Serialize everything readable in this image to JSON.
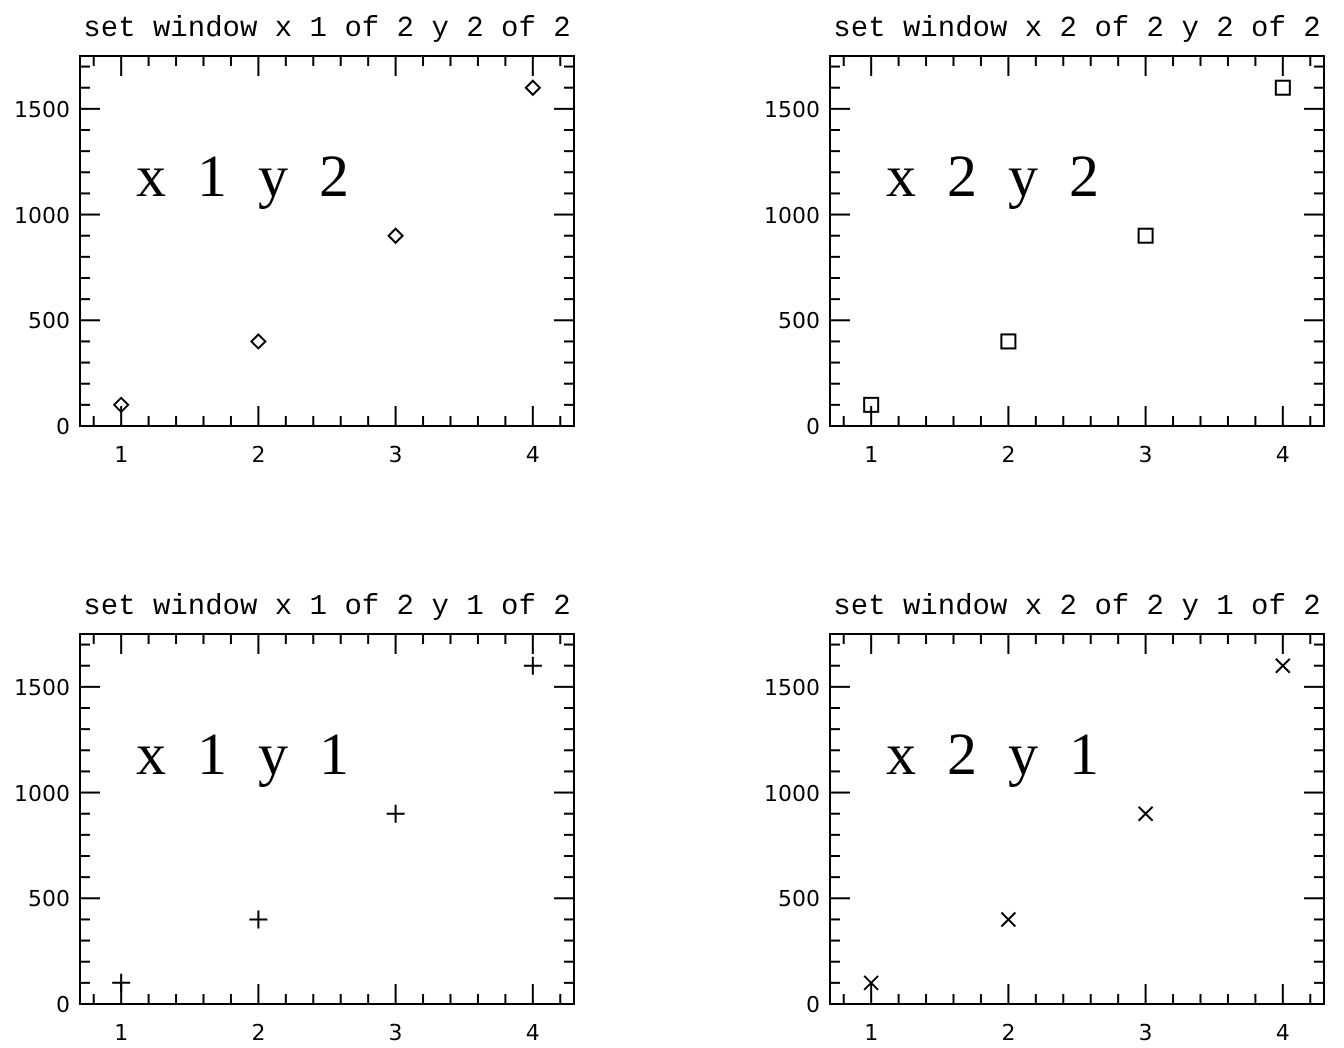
{
  "chart_data": [
    {
      "type": "scatter",
      "title": "set window x 1 of 2 y 2 of 2",
      "annotations": [
        "x 1 y 2"
      ],
      "x": [
        1,
        2,
        3,
        4
      ],
      "values": [
        100,
        400,
        900,
        1600
      ],
      "color": "#000000",
      "marker": "diamond",
      "xlim": [
        0.7,
        4.3
      ],
      "ylim": [
        0,
        1750
      ],
      "xticks": [
        {
          "value": 0.8,
          "label": null
        },
        1,
        {
          "value": 1.2,
          "label": null
        },
        {
          "value": 1.4,
          "label": null
        },
        {
          "value": 1.6,
          "label": null
        },
        {
          "value": 1.8,
          "label": null
        },
        2,
        {
          "value": 2.2,
          "label": null
        },
        {
          "value": 2.4,
          "label": null
        },
        {
          "value": 2.6,
          "label": null
        },
        {
          "value": 2.8,
          "label": null
        },
        3,
        {
          "value": 3.2,
          "label": null
        },
        {
          "value": 3.4,
          "label": null
        },
        {
          "value": 3.6,
          "label": null
        },
        {
          "value": 3.8,
          "label": null
        },
        4,
        {
          "value": 4.2,
          "label": null
        }
      ],
      "yticks": [
        0,
        {
          "value": 100,
          "label": null
        },
        {
          "value": 200,
          "label": null
        },
        {
          "value": 300,
          "label": null
        },
        {
          "value": 400,
          "label": null
        },
        500,
        {
          "value": 600,
          "label": null
        },
        {
          "value": 700,
          "label": null
        },
        {
          "value": 800,
          "label": null
        },
        {
          "value": 900,
          "label": null
        },
        1000,
        {
          "value": 1100,
          "label": null
        },
        {
          "value": 1200,
          "label": null
        },
        {
          "value": 1300,
          "label": null
        },
        {
          "value": 1400,
          "label": null
        },
        1500,
        {
          "value": 1600,
          "label": null
        },
        {
          "value": 1700,
          "label": null
        }
      ]
    },
    {
      "type": "scatter",
      "title": "set window x 2 of 2 y 2 of 2",
      "annotations": [
        "x 2 y 2"
      ],
      "x": [
        1,
        2,
        3,
        4
      ],
      "values": [
        100,
        400,
        900,
        1600
      ],
      "color": "#000000",
      "marker": "square",
      "xlim": [
        0.7,
        4.3
      ],
      "ylim": [
        0,
        1750
      ],
      "xticks": [
        {
          "value": 0.8,
          "label": null
        },
        1,
        {
          "value": 1.2,
          "label": null
        },
        {
          "value": 1.4,
          "label": null
        },
        {
          "value": 1.6,
          "label": null
        },
        {
          "value": 1.8,
          "label": null
        },
        2,
        {
          "value": 2.2,
          "label": null
        },
        {
          "value": 2.4,
          "label": null
        },
        {
          "value": 2.6,
          "label": null
        },
        {
          "value": 2.8,
          "label": null
        },
        3,
        {
          "value": 3.2,
          "label": null
        },
        {
          "value": 3.4,
          "label": null
        },
        {
          "value": 3.6,
          "label": null
        },
        {
          "value": 3.8,
          "label": null
        },
        4,
        {
          "value": 4.2,
          "label": null
        }
      ],
      "yticks": [
        0,
        {
          "value": 100,
          "label": null
        },
        {
          "value": 200,
          "label": null
        },
        {
          "value": 300,
          "label": null
        },
        {
          "value": 400,
          "label": null
        },
        500,
        {
          "value": 600,
          "label": null
        },
        {
          "value": 700,
          "label": null
        },
        {
          "value": 800,
          "label": null
        },
        {
          "value": 900,
          "label": null
        },
        1000,
        {
          "value": 1100,
          "label": null
        },
        {
          "value": 1200,
          "label": null
        },
        {
          "value": 1300,
          "label": null
        },
        {
          "value": 1400,
          "label": null
        },
        1500,
        {
          "value": 1600,
          "label": null
        },
        {
          "value": 1700,
          "label": null
        }
      ]
    },
    {
      "type": "scatter",
      "title": "set window x 1 of 2 y 1 of 2",
      "annotations": [
        "x 1 y 1"
      ],
      "x": [
        1,
        2,
        3,
        4
      ],
      "values": [
        100,
        400,
        900,
        1600
      ],
      "color": "#000000",
      "marker": "plus",
      "xlim": [
        0.7,
        4.3
      ],
      "ylim": [
        0,
        1750
      ],
      "xticks": [
        {
          "value": 0.8,
          "label": null
        },
        1,
        {
          "value": 1.2,
          "label": null
        },
        {
          "value": 1.4,
          "label": null
        },
        {
          "value": 1.6,
          "label": null
        },
        {
          "value": 1.8,
          "label": null
        },
        2,
        {
          "value": 2.2,
          "label": null
        },
        {
          "value": 2.4,
          "label": null
        },
        {
          "value": 2.6,
          "label": null
        },
        {
          "value": 2.8,
          "label": null
        },
        3,
        {
          "value": 3.2,
          "label": null
        },
        {
          "value": 3.4,
          "label": null
        },
        {
          "value": 3.6,
          "label": null
        },
        {
          "value": 3.8,
          "label": null
        },
        4,
        {
          "value": 4.2,
          "label": null
        }
      ],
      "yticks": [
        0,
        {
          "value": 100,
          "label": null
        },
        {
          "value": 200,
          "label": null
        },
        {
          "value": 300,
          "label": null
        },
        {
          "value": 400,
          "label": null
        },
        500,
        {
          "value": 600,
          "label": null
        },
        {
          "value": 700,
          "label": null
        },
        {
          "value": 800,
          "label": null
        },
        {
          "value": 900,
          "label": null
        },
        1000,
        {
          "value": 1100,
          "label": null
        },
        {
          "value": 1200,
          "label": null
        },
        {
          "value": 1300,
          "label": null
        },
        {
          "value": 1400,
          "label": null
        },
        1500,
        {
          "value": 1600,
          "label": null
        },
        {
          "value": 1700,
          "label": null
        }
      ]
    },
    {
      "type": "scatter",
      "title": "set window x 2 of 2 y 1 of 2",
      "annotations": [
        "x 2 y 1"
      ],
      "x": [
        1,
        2,
        3,
        4
      ],
      "values": [
        100,
        400,
        900,
        1600
      ],
      "color": "#000000",
      "marker": "cross",
      "xlim": [
        0.7,
        4.3
      ],
      "ylim": [
        0,
        1750
      ],
      "xticks": [
        {
          "value": 0.8,
          "label": null
        },
        1,
        {
          "value": 1.2,
          "label": null
        },
        {
          "value": 1.4,
          "label": null
        },
        {
          "value": 1.6,
          "label": null
        },
        {
          "value": 1.8,
          "label": null
        },
        2,
        {
          "value": 2.2,
          "label": null
        },
        {
          "value": 2.4,
          "label": null
        },
        {
          "value": 2.6,
          "label": null
        },
        {
          "value": 2.8,
          "label": null
        },
        3,
        {
          "value": 3.2,
          "label": null
        },
        {
          "value": 3.4,
          "label": null
        },
        {
          "value": 3.6,
          "label": null
        },
        {
          "value": 3.8,
          "label": null
        },
        4,
        {
          "value": 4.2,
          "label": null
        }
      ],
      "yticks": [
        0,
        {
          "value": 100,
          "label": null
        },
        {
          "value": 200,
          "label": null
        },
        {
          "value": 300,
          "label": null
        },
        {
          "value": 400,
          "label": null
        },
        500,
        {
          "value": 600,
          "label": null
        },
        {
          "value": 700,
          "label": null
        },
        {
          "value": 800,
          "label": null
        },
        {
          "value": 900,
          "label": null
        },
        1000,
        {
          "value": 1100,
          "label": null
        },
        {
          "value": 1200,
          "label": null
        },
        {
          "value": 1300,
          "label": null
        },
        {
          "value": 1400,
          "label": null
        },
        1500,
        {
          "value": 1600,
          "label": null
        },
        {
          "value": 1700,
          "label": null
        }
      ]
    }
  ]
}
